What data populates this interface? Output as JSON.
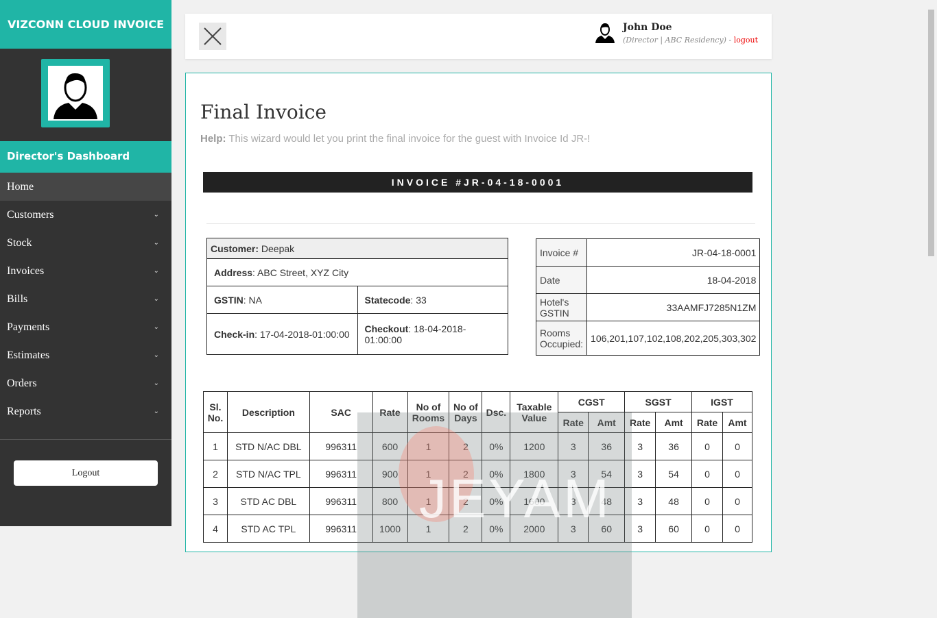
{
  "brand": "VIZCONN CLOUD INVOICE",
  "dashboard_title": "Director's Dashboard",
  "menu": [
    {
      "label": "Home"
    },
    {
      "label": "Customers"
    },
    {
      "label": "Stock"
    },
    {
      "label": "Invoices"
    },
    {
      "label": "Bills"
    },
    {
      "label": "Payments"
    },
    {
      "label": "Estimates"
    },
    {
      "label": "Orders"
    },
    {
      "label": "Reports"
    }
  ],
  "sidebar_logout": "Logout",
  "user": {
    "name": "John Doe",
    "role": "(Director | ABC Residency)",
    "sep": " - ",
    "logout": "logout"
  },
  "page": {
    "title": "Final Invoice",
    "help_label": "Help:",
    "help_text": " This wizard would let you print the final invoice for the guest with Invoice Id JR-!",
    "invoice_banner": "INVOICE #JR-04-18-0001"
  },
  "customer": {
    "name_label": "Customer:",
    "name": " Deepak",
    "address_label": "Address",
    "address": ": ABC Street, XYZ City",
    "gstin_label": "GSTIN",
    "gstin": ": NA",
    "statecode_label": "Statecode",
    "statecode": ": 33",
    "checkin_label": "Check-in",
    "checkin": ": 17-04-2018-01:00:00",
    "checkout_label": "Checkout",
    "checkout": ": 18-04-2018-01:00:00"
  },
  "meta": [
    {
      "label": "Invoice #",
      "value": "JR-04-18-0001"
    },
    {
      "label": "Date",
      "value": "18-04-2018"
    },
    {
      "label": "Hotel's GSTIN",
      "value": "33AAMFJ7285N1ZM"
    },
    {
      "label": "Rooms Occupied:",
      "value": "106,201,107,102,108,202,205,303,302"
    }
  ],
  "table": {
    "headers": {
      "sl": "Sl. No.",
      "desc": "Description",
      "sac": "SAC",
      "rate": "Rate",
      "rooms": "No of Rooms",
      "days": "No of Days",
      "dsc": "Dsc.",
      "taxable": "Taxable Value",
      "cgst": "CGST",
      "sgst": "SGST",
      "igst": "IGST",
      "sub_rate": "Rate",
      "sub_amt": "Amt"
    },
    "rows": [
      [
        "1",
        "STD N/AC DBL",
        "996311",
        "600",
        "1",
        "2",
        "0%",
        "1200",
        "3",
        "36",
        "3",
        "36",
        "0",
        "0"
      ],
      [
        "2",
        "STD N/AC TPL",
        "996311",
        "900",
        "1",
        "2",
        "0%",
        "1800",
        "3",
        "54",
        "3",
        "54",
        "0",
        "0"
      ],
      [
        "3",
        "STD AC DBL",
        "996311",
        "800",
        "1",
        "2",
        "0%",
        "1600",
        "3",
        "48",
        "3",
        "48",
        "0",
        "0"
      ],
      [
        "4",
        "STD AC TPL",
        "996311",
        "1000",
        "1",
        "2",
        "0%",
        "2000",
        "3",
        "60",
        "3",
        "60",
        "0",
        "0"
      ]
    ]
  },
  "watermark": "JEYAM"
}
